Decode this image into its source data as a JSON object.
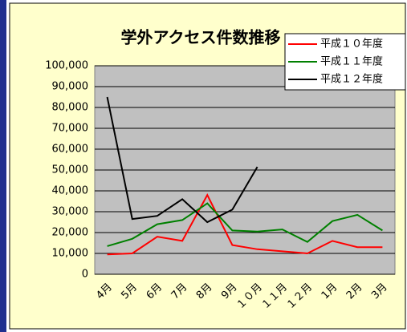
{
  "chart_data": {
    "type": "line",
    "title": "学外アクセス件数推移",
    "categories": [
      "4月",
      "5月",
      "6月",
      "7月",
      "8月",
      "9月",
      "１０月",
      "１１月",
      "１２月",
      "1月",
      "2月",
      "3月"
    ],
    "series": [
      {
        "name": "平成１０年度",
        "color": "#ff0000",
        "values": [
          9500,
          10000,
          18000,
          16000,
          38000,
          14000,
          12000,
          11000,
          10000,
          16000,
          13000,
          13000
        ]
      },
      {
        "name": "平成１１年度",
        "color": "#008000",
        "values": [
          13500,
          17000,
          24000,
          26000,
          34000,
          21000,
          20500,
          21500,
          15500,
          25500,
          28500,
          21000
        ]
      },
      {
        "name": "平成１２年度",
        "color": "#000000",
        "values": [
          85000,
          26500,
          28000,
          36000,
          25000,
          31000,
          51500,
          null,
          null,
          null,
          null,
          null
        ]
      }
    ],
    "ylim": [
      0,
      100000
    ],
    "yticks": [
      0,
      {
        "value": 10000,
        "label": "10,000"
      },
      {
        "value": 20000,
        "label": "20,000"
      },
      {
        "value": 30000,
        "label": "30,000"
      },
      {
        "value": 40000,
        "label": "40,000"
      },
      {
        "value": 50000,
        "label": "50,000"
      },
      {
        "value": 60000,
        "label": "60,000"
      },
      {
        "value": 70000,
        "label": "70,000"
      },
      {
        "value": 80000,
        "label": "80,000"
      },
      {
        "value": 90000,
        "label": "90,000"
      },
      {
        "value": 100000,
        "label": "100,000"
      }
    ],
    "grid": true,
    "legend": "top-right"
  }
}
